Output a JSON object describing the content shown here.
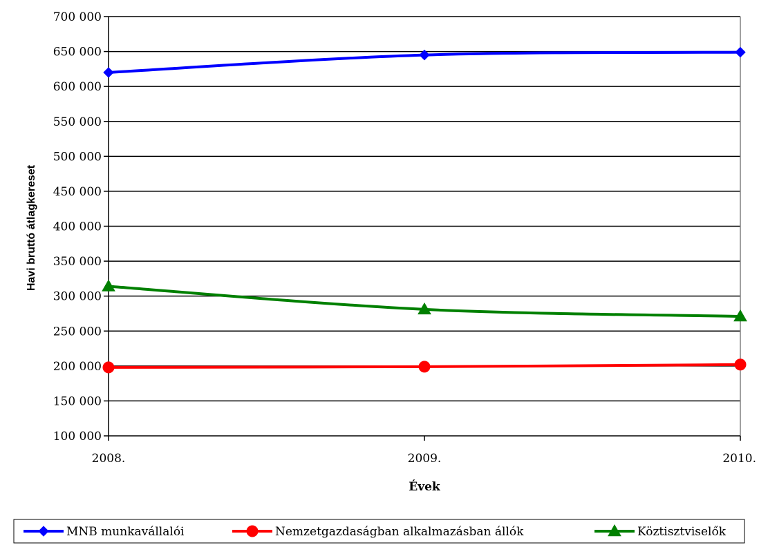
{
  "chart_data": {
    "type": "line",
    "x": [
      "2008.",
      "2009.",
      "2010."
    ],
    "xlabel": "Évek",
    "ylabel": "Havi bruttó átlagkereset",
    "ylim": [
      100000,
      700000
    ],
    "ytick_step": 50000,
    "yticks": [
      "100 000",
      "150 000",
      "200 000",
      "250 000",
      "300 000",
      "350 000",
      "400 000",
      "450 000",
      "500 000",
      "550 000",
      "600 000",
      "650 000",
      "700 000"
    ],
    "grid": true,
    "legend_position": "bottom",
    "series": [
      {
        "name": "MNB munkavállalói",
        "values": [
          620000,
          645000,
          649000
        ],
        "color": "#0000ff",
        "marker": "diamond"
      },
      {
        "name": "Nemzetgazdaságban alkalmazásban állók",
        "values": [
          198000,
          199000,
          202000
        ],
        "color": "#ff0000",
        "marker": "circle"
      },
      {
        "name": "Köztisztviselők",
        "values": [
          314000,
          281000,
          271000
        ],
        "color": "#008000",
        "marker": "triangle"
      }
    ]
  }
}
